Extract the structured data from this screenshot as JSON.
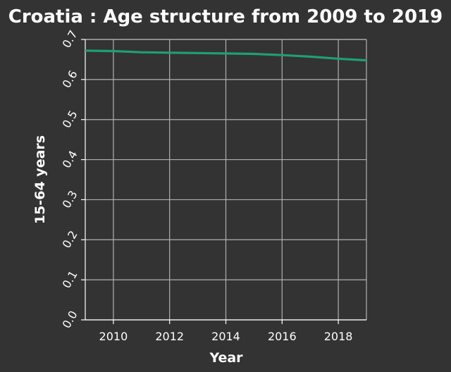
{
  "chart_data": {
    "type": "line",
    "title": "Croatia : Age structure from 2009 to 2019",
    "xlabel": "Year",
    "ylabel": "15-64 years",
    "xlim": [
      2009,
      2019
    ],
    "ylim": [
      0.0,
      0.7
    ],
    "x_ticks": [
      "2010",
      "2012",
      "2014",
      "2016",
      "2018"
    ],
    "y_ticks": [
      "0.0",
      "0.1",
      "0.2",
      "0.3",
      "0.4",
      "0.5",
      "0.6",
      "0.7"
    ],
    "grid": true,
    "series": [
      {
        "color": "#1f9e77",
        "x": [
          2009,
          2010,
          2011,
          2012,
          2013,
          2014,
          2015,
          2016,
          2017,
          2018,
          2019
        ],
        "y": [
          0.672,
          0.671,
          0.668,
          0.667,
          0.666,
          0.665,
          0.664,
          0.661,
          0.657,
          0.652,
          0.648
        ]
      }
    ]
  },
  "colors": {
    "background": "#333333",
    "grid": "#b0b0b0",
    "text": "#ffffff",
    "series": "#1f9e77"
  }
}
